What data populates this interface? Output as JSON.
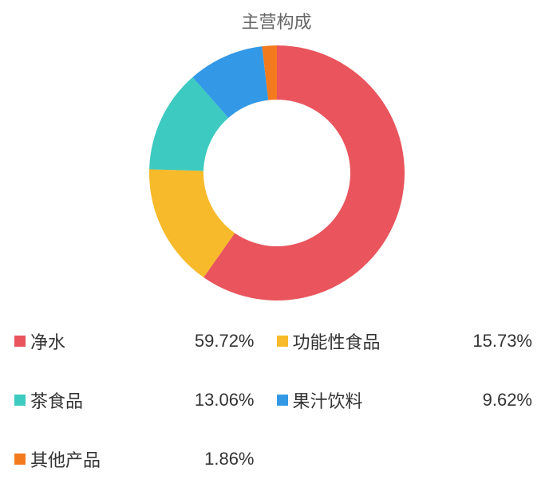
{
  "chart": {
    "type": "donut",
    "title": "主营构成",
    "title_color": "#666666",
    "title_fontsize": 22,
    "background_color": "#ffffff",
    "outer_radius": 160,
    "inner_radius": 92,
    "start_angle_deg": -90,
    "segments": [
      {
        "label": "净水",
        "value_text": "59.72%",
        "value": 59.72,
        "color": "#e9545d"
      },
      {
        "label": "功能性食品",
        "value_text": "15.73%",
        "value": 15.73,
        "color": "#f7ba2a"
      },
      {
        "label": "茶食品",
        "value_text": "13.06%",
        "value": 13.06,
        "color": "#3dcac0"
      },
      {
        "label": "果汁饮料",
        "value_text": "9.62%",
        "value": 9.62,
        "color": "#3399e6"
      },
      {
        "label": "其他产品",
        "value_text": "1.86%",
        "value": 1.86,
        "color": "#f37b1d"
      }
    ],
    "legend": {
      "marker_size": 14,
      "label_fontsize": 22,
      "columns": 2
    }
  }
}
